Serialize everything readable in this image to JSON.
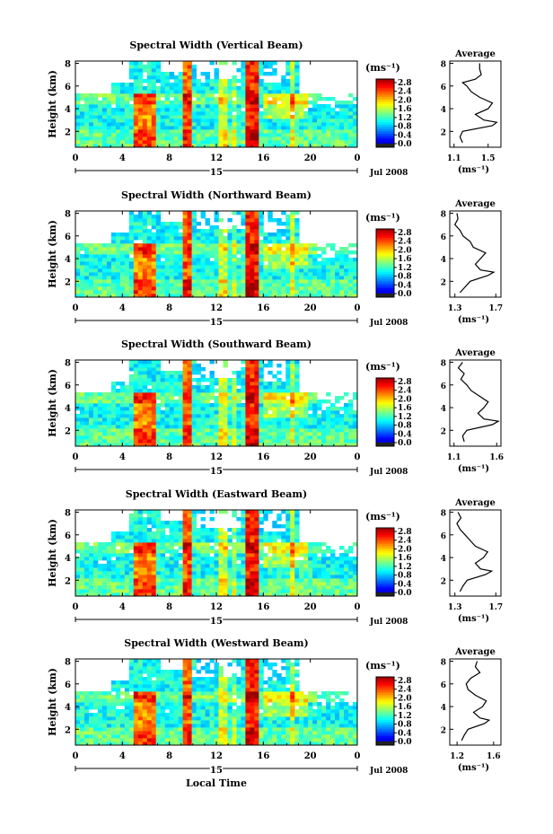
{
  "chart_data": [
    {
      "type": "heatmap",
      "title": "Spectral Width (Vertical Beam)",
      "ylabel": "Height (km)",
      "x_ticks": [
        "0",
        "4",
        "8",
        "12",
        "16",
        "20",
        "0"
      ],
      "x_center_label": "15",
      "date_label": "Jul 2008",
      "ylim": [
        0.6,
        8.2
      ],
      "y_ticks": [
        "2",
        "4",
        "6",
        "8"
      ],
      "colorbar": {
        "unit": "(ms⁻¹)",
        "ticks": [
          "2.8",
          "2.4",
          "2.0",
          "1.6",
          "1.2",
          "0.8",
          "0.4",
          "0.0"
        ],
        "range": [
          0,
          2.8
        ]
      },
      "average_profile": {
        "title": "Average",
        "xlabel": "(ms⁻¹)",
        "x_ticks": [
          "1.1",
          "1.5"
        ],
        "xlim": [
          1.05,
          1.65
        ],
        "y_ticks": [
          "2",
          "4",
          "6",
          "8"
        ],
        "height": [
          1.0,
          1.5,
          2.0,
          2.5,
          2.8,
          3.0,
          3.5,
          4.0,
          4.5,
          5.0,
          5.5,
          6.0,
          6.3,
          6.6,
          7.0,
          7.5,
          8.0
        ],
        "value": [
          1.2,
          1.17,
          1.2,
          1.55,
          1.6,
          1.45,
          1.35,
          1.5,
          1.55,
          1.4,
          1.3,
          1.25,
          1.2,
          1.35,
          1.42,
          1.4,
          1.4
        ]
      }
    },
    {
      "type": "heatmap",
      "title": "Spectral Width (Northward Beam)",
      "ylabel": "Height (km)",
      "x_ticks": [
        "0",
        "4",
        "8",
        "12",
        "16",
        "20",
        "0"
      ],
      "x_center_label": "15",
      "date_label": "Jul 2008",
      "ylim": [
        0.6,
        8.2
      ],
      "y_ticks": [
        "2",
        "4",
        "6",
        "8"
      ],
      "colorbar": {
        "unit": "(ms⁻¹)",
        "ticks": [
          "2.8",
          "2.4",
          "2.0",
          "1.6",
          "1.2",
          "0.8",
          "0.4",
          "0.0"
        ],
        "range": [
          0,
          2.8
        ]
      },
      "average_profile": {
        "title": "Average",
        "xlabel": "(ms⁻¹)",
        "x_ticks": [
          "1.3",
          "1.7"
        ],
        "xlim": [
          1.25,
          1.75
        ],
        "y_ticks": [
          "2",
          "4",
          "6",
          "8"
        ],
        "height": [
          1.0,
          1.5,
          2.0,
          2.5,
          2.8,
          3.0,
          3.5,
          4.0,
          4.5,
          5.0,
          5.5,
          6.0,
          6.5,
          7.0,
          7.5,
          8.0
        ],
        "value": [
          1.35,
          1.4,
          1.45,
          1.62,
          1.68,
          1.55,
          1.5,
          1.55,
          1.6,
          1.48,
          1.45,
          1.38,
          1.35,
          1.3,
          1.33,
          1.32
        ]
      }
    },
    {
      "type": "heatmap",
      "title": "Spectral Width (Southward Beam)",
      "ylabel": "Height (km)",
      "x_ticks": [
        "0",
        "4",
        "8",
        "12",
        "16",
        "20",
        "0"
      ],
      "x_center_label": "15",
      "date_label": "Jul 2008",
      "ylim": [
        0.6,
        8.2
      ],
      "y_ticks": [
        "2",
        "4",
        "6",
        "8"
      ],
      "colorbar": {
        "unit": "(ms⁻¹)",
        "ticks": [
          "2.8",
          "2.4",
          "2.0",
          "1.6",
          "1.2",
          "0.8",
          "0.4",
          "0.0"
        ],
        "range": [
          0,
          2.8
        ]
      },
      "average_profile": {
        "title": "Average",
        "xlabel": "(ms⁻¹)",
        "x_ticks": [
          "1.1",
          "1.6"
        ],
        "xlim": [
          1.05,
          1.65
        ],
        "y_ticks": [
          "2",
          "4",
          "6",
          "8"
        ],
        "height": [
          1.0,
          1.5,
          2.0,
          2.5,
          2.8,
          3.0,
          3.5,
          4.0,
          4.5,
          5.0,
          5.5,
          6.0,
          6.5,
          7.0,
          7.5,
          8.0
        ],
        "value": [
          1.22,
          1.2,
          1.25,
          1.55,
          1.62,
          1.45,
          1.38,
          1.45,
          1.5,
          1.4,
          1.3,
          1.25,
          1.18,
          1.22,
          1.15,
          1.2
        ]
      }
    },
    {
      "type": "heatmap",
      "title": "Spectral Width (Eastward Beam)",
      "ylabel": "Height (km)",
      "x_ticks": [
        "0",
        "4",
        "8",
        "12",
        "16",
        "20",
        "0"
      ],
      "x_center_label": "15",
      "date_label": "Jul 2008",
      "ylim": [
        0.6,
        8.2
      ],
      "y_ticks": [
        "2",
        "4",
        "6",
        "8"
      ],
      "colorbar": {
        "unit": "(ms⁻¹)",
        "ticks": [
          "2.8",
          "2.4",
          "2.0",
          "1.6",
          "1.2",
          "0.8",
          "0.4",
          "0.0"
        ],
        "range": [
          0,
          2.8
        ]
      },
      "average_profile": {
        "title": "Average",
        "xlabel": "(ms⁻¹)",
        "x_ticks": [
          "1.3",
          "1.7"
        ],
        "xlim": [
          1.25,
          1.75
        ],
        "y_ticks": [
          "2",
          "4",
          "6",
          "8"
        ],
        "height": [
          1.0,
          1.5,
          2.0,
          2.5,
          2.8,
          3.0,
          3.5,
          4.0,
          4.5,
          5.0,
          5.5,
          6.0,
          6.5,
          7.0,
          7.5,
          8.0
        ],
        "value": [
          1.35,
          1.38,
          1.42,
          1.6,
          1.66,
          1.55,
          1.5,
          1.58,
          1.62,
          1.5,
          1.45,
          1.4,
          1.35,
          1.32,
          1.36,
          1.33
        ]
      }
    },
    {
      "type": "heatmap",
      "title": "Spectral Width (Westward Beam)",
      "ylabel": "Height (km)",
      "xlabel": "Local Time",
      "x_ticks": [
        "0",
        "4",
        "8",
        "12",
        "16",
        "20",
        "0"
      ],
      "x_center_label": "15",
      "date_label": "Jul 2008",
      "ylim": [
        0.6,
        8.2
      ],
      "y_ticks": [
        "2",
        "4",
        "6",
        "8"
      ],
      "colorbar": {
        "unit": "(ms⁻¹)",
        "ticks": [
          "2.8",
          "2.4",
          "2.0",
          "1.6",
          "1.2",
          "0.8",
          "0.4",
          "0.0"
        ],
        "range": [
          0,
          2.8
        ]
      },
      "average_profile": {
        "title": "Average",
        "xlabel": "(ms⁻¹)",
        "x_ticks": [
          "1.2",
          "1.6"
        ],
        "xlim": [
          1.12,
          1.68
        ],
        "y_ticks": [
          "2",
          "4",
          "6",
          "8"
        ],
        "height": [
          1.0,
          1.5,
          2.0,
          2.5,
          2.8,
          3.0,
          3.5,
          4.0,
          4.5,
          5.0,
          5.5,
          6.0,
          6.5,
          7.0,
          7.5,
          8.0
        ],
        "value": [
          1.25,
          1.28,
          1.32,
          1.5,
          1.55,
          1.45,
          1.38,
          1.48,
          1.52,
          1.4,
          1.32,
          1.3,
          1.35,
          1.45,
          1.4,
          1.42
        ]
      }
    }
  ]
}
